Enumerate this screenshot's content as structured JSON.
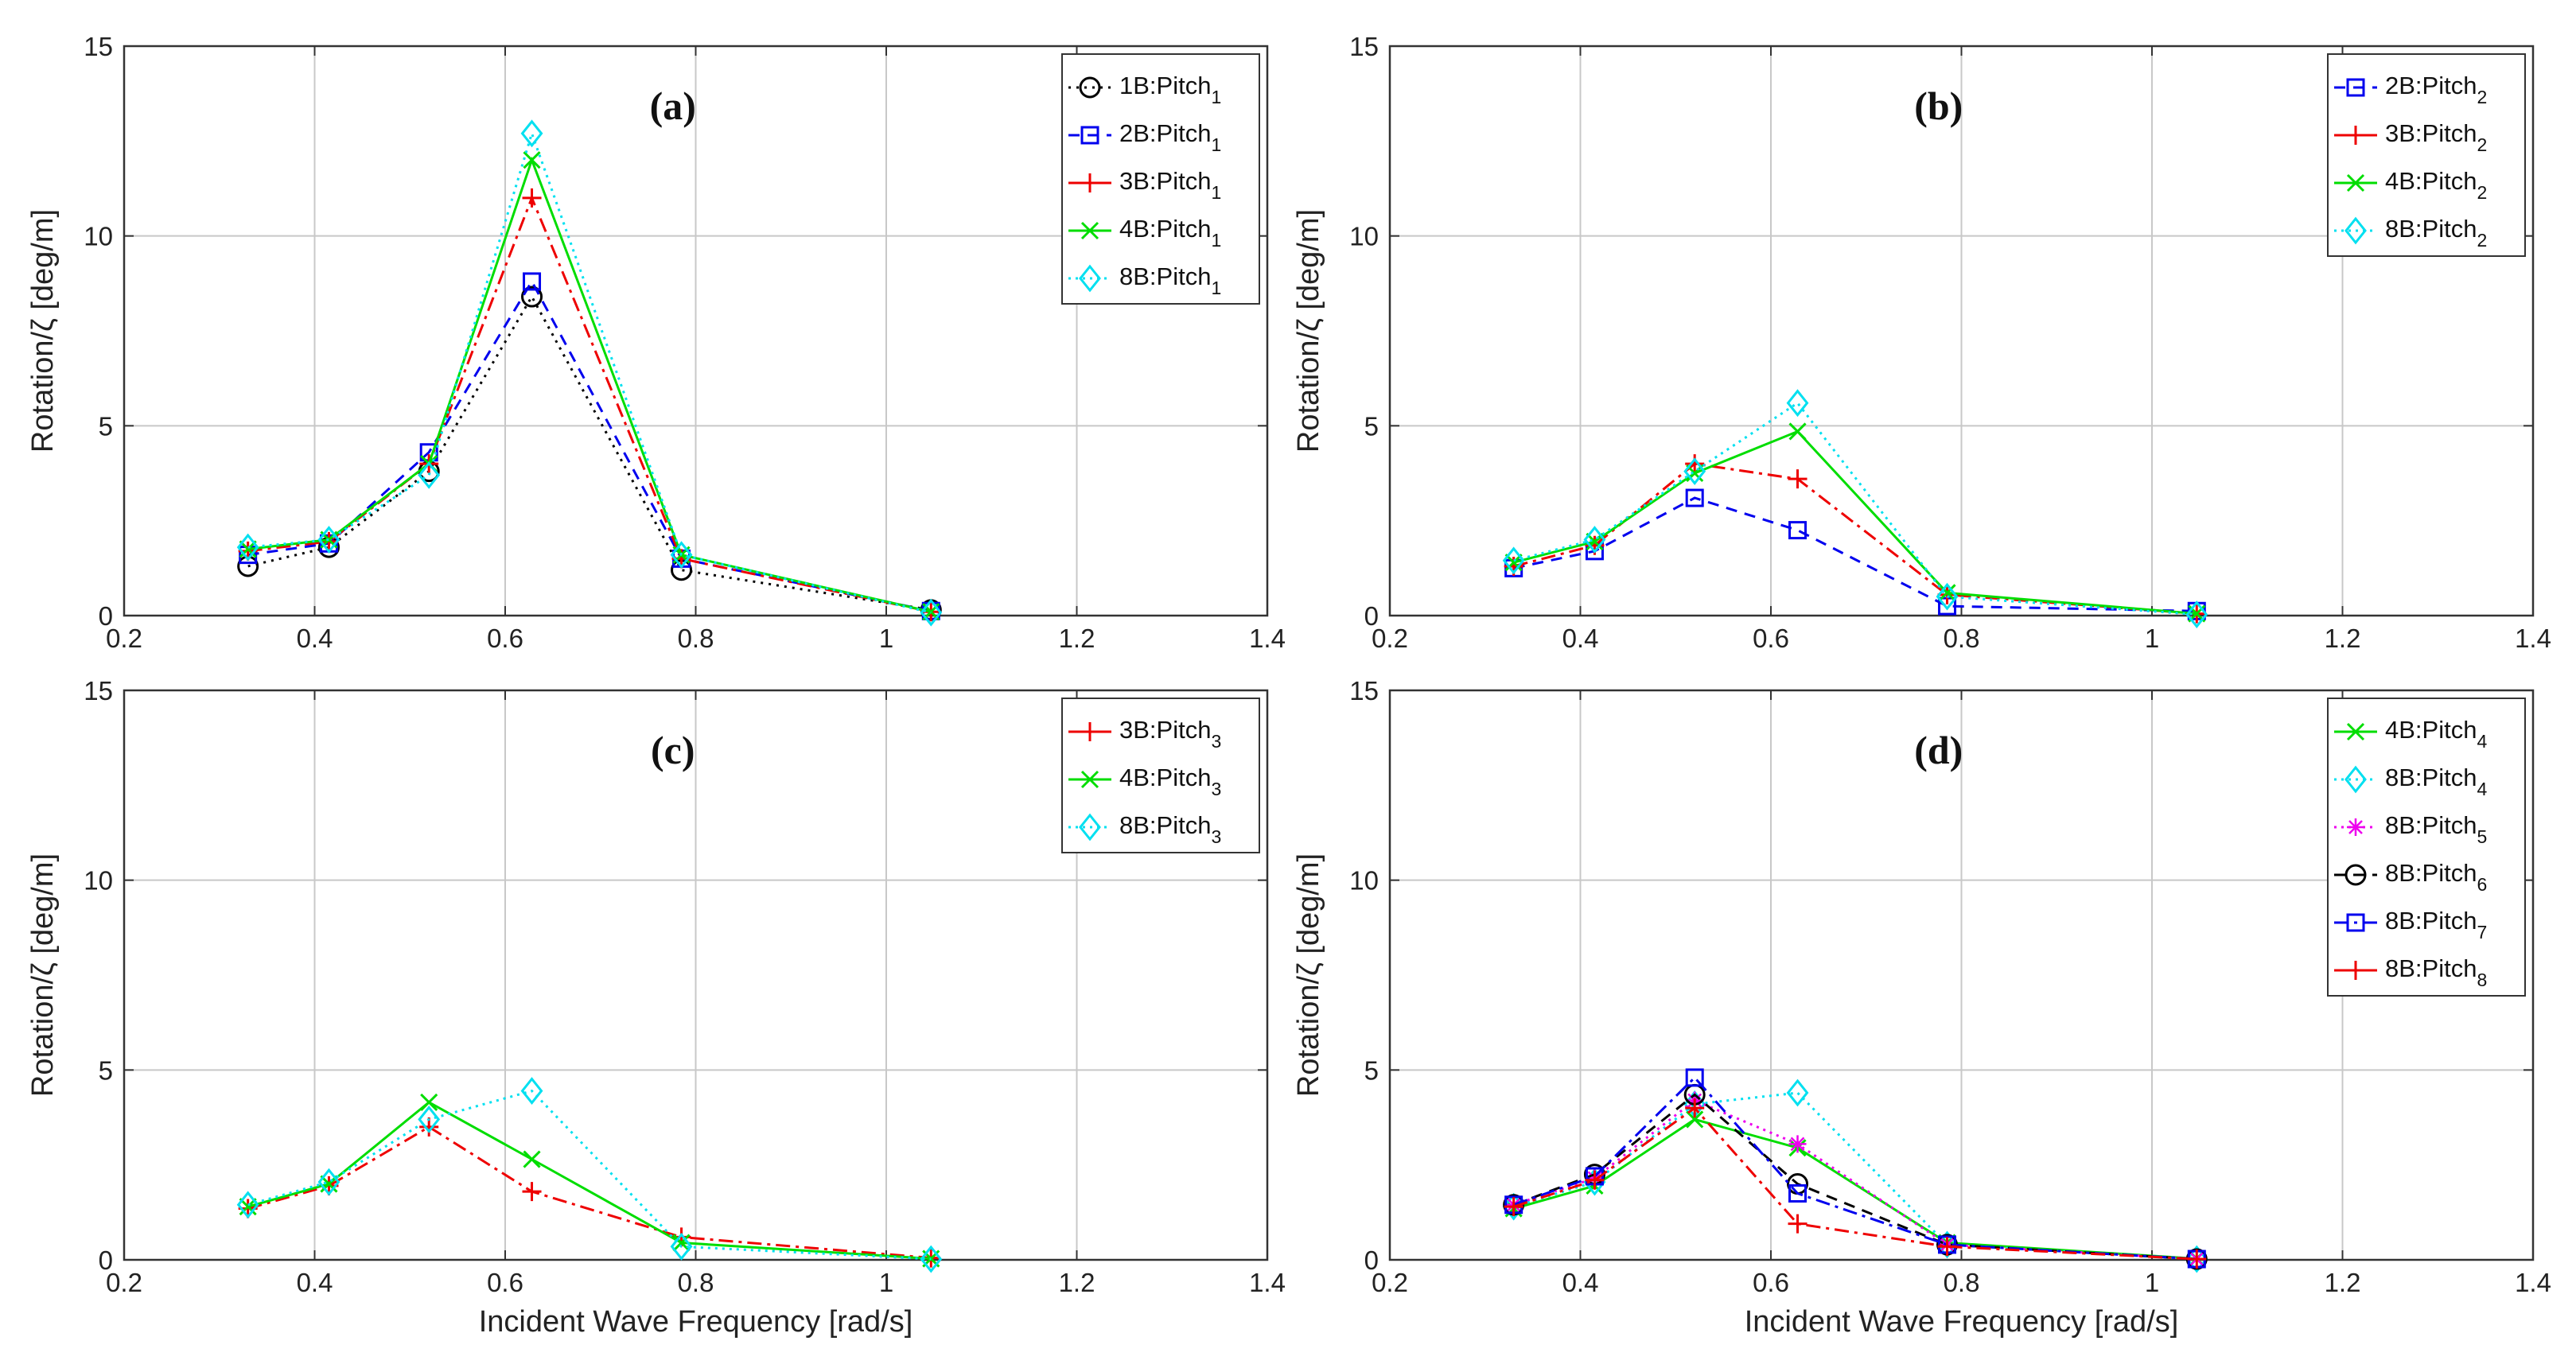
{
  "figure": {
    "xlabel": "Incident Wave Frequency [rad/s]",
    "ylabel": "Rotation/ζ [deg/m]"
  },
  "chart_data": [
    {
      "type": "line",
      "panel": "(a)",
      "xlabel": "",
      "ylabel": "Rotation/ζ [deg/m]",
      "xlim": [
        0.2,
        1.4
      ],
      "ylim": [
        0,
        15
      ],
      "xticks": [
        "0.2",
        "0.4",
        "0.6",
        "0.8",
        "1",
        "1.2",
        "1.4"
      ],
      "yticks": [
        "0",
        "5",
        "10",
        "15"
      ],
      "grid": true,
      "legend_position": "top-right",
      "x": [
        0.33,
        0.415,
        0.52,
        0.628,
        0.785,
        1.047
      ],
      "series": [
        {
          "name": "1B:Pitch",
          "sub": "1",
          "color": "#000000",
          "dash": "3,7",
          "marker": "circle",
          "values": [
            1.3,
            1.8,
            3.8,
            8.4,
            1.2,
            0.15
          ]
        },
        {
          "name": "2B:Pitch",
          "sub": "1",
          "color": "#0000ee",
          "dash": "14,10",
          "marker": "square",
          "values": [
            1.6,
            1.9,
            4.3,
            8.8,
            1.5,
            0.12
          ]
        },
        {
          "name": "3B:Pitch",
          "sub": "1",
          "color": "#ee0000",
          "dash": "18,7,4,7",
          "marker": "plus",
          "values": [
            1.7,
            1.95,
            4.0,
            11.0,
            1.5,
            0.1
          ]
        },
        {
          "name": "4B:Pitch",
          "sub": "1",
          "color": "#00dd00",
          "dash": "",
          "marker": "x",
          "values": [
            1.75,
            2.0,
            4.0,
            12.0,
            1.6,
            0.1
          ]
        },
        {
          "name": "8B:Pitch",
          "sub": "1",
          "color": "#00e0f0",
          "dash": "3,6",
          "marker": "diamond",
          "values": [
            1.8,
            2.0,
            3.7,
            12.7,
            1.6,
            0.08
          ]
        }
      ]
    },
    {
      "type": "line",
      "panel": "(b)",
      "xlabel": "",
      "ylabel": "Rotation/ζ [deg/m]",
      "xlim": [
        0.2,
        1.4
      ],
      "ylim": [
        0,
        15
      ],
      "xticks": [
        "0.2",
        "0.4",
        "0.6",
        "0.8",
        "1",
        "1.2",
        "1.4"
      ],
      "yticks": [
        "0",
        "5",
        "10",
        "15"
      ],
      "grid": true,
      "legend_position": "top-right",
      "x": [
        0.33,
        0.415,
        0.52,
        0.628,
        0.785,
        1.047
      ],
      "series": [
        {
          "name": "2B:Pitch",
          "sub": "2",
          "color": "#0000ee",
          "dash": "14,10",
          "marker": "square",
          "values": [
            1.25,
            1.7,
            3.1,
            2.25,
            0.25,
            0.12
          ]
        },
        {
          "name": "3B:Pitch",
          "sub": "2",
          "color": "#ee0000",
          "dash": "18,7,4,7",
          "marker": "plus",
          "values": [
            1.3,
            1.85,
            4.0,
            3.6,
            0.55,
            0.05
          ]
        },
        {
          "name": "4B:Pitch",
          "sub": "2",
          "color": "#00dd00",
          "dash": "",
          "marker": "x",
          "values": [
            1.4,
            1.95,
            3.75,
            4.85,
            0.6,
            0.05
          ]
        },
        {
          "name": "8B:Pitch",
          "sub": "2",
          "color": "#00e0f0",
          "dash": "3,6",
          "marker": "diamond",
          "values": [
            1.45,
            2.0,
            3.8,
            5.6,
            0.5,
            0.03
          ]
        }
      ]
    },
    {
      "type": "line",
      "panel": "(c)",
      "xlabel": "Incident Wave Frequency [rad/s]",
      "ylabel": "Rotation/ζ [deg/m]",
      "xlim": [
        0.2,
        1.4
      ],
      "ylim": [
        0,
        15
      ],
      "xticks": [
        "0.2",
        "0.4",
        "0.6",
        "0.8",
        "1",
        "1.2",
        "1.4"
      ],
      "yticks": [
        "0",
        "5",
        "10",
        "15"
      ],
      "grid": true,
      "legend_position": "top-right",
      "x": [
        0.33,
        0.415,
        0.52,
        0.628,
        0.785,
        1.047
      ],
      "series": [
        {
          "name": "3B:Pitch",
          "sub": "3",
          "color": "#ee0000",
          "dash": "18,7,4,7",
          "marker": "plus",
          "values": [
            1.35,
            1.95,
            3.5,
            1.8,
            0.6,
            0.05
          ]
        },
        {
          "name": "4B:Pitch",
          "sub": "3",
          "color": "#00dd00",
          "dash": "",
          "marker": "x",
          "values": [
            1.4,
            2.0,
            4.15,
            2.65,
            0.45,
            0.03
          ]
        },
        {
          "name": "8B:Pitch",
          "sub": "3",
          "color": "#00e0f0",
          "dash": "3,6",
          "marker": "diamond",
          "values": [
            1.45,
            2.05,
            3.7,
            4.45,
            0.35,
            0.02
          ]
        }
      ]
    },
    {
      "type": "line",
      "panel": "(d)",
      "xlabel": "Incident Wave Frequency [rad/s]",
      "ylabel": "Rotation/ζ [deg/m]",
      "xlim": [
        0.2,
        1.4
      ],
      "ylim": [
        0,
        15
      ],
      "xticks": [
        "0.2",
        "0.4",
        "0.6",
        "0.8",
        "1",
        "1.2",
        "1.4"
      ],
      "yticks": [
        "0",
        "5",
        "10",
        "15"
      ],
      "grid": true,
      "legend_position": "top-right",
      "x": [
        0.33,
        0.415,
        0.52,
        0.628,
        0.785,
        1.047
      ],
      "series": [
        {
          "name": "4B:Pitch",
          "sub": "4",
          "color": "#00dd00",
          "dash": "",
          "marker": "x",
          "values": [
            1.35,
            1.95,
            3.7,
            2.95,
            0.45,
            0.03
          ]
        },
        {
          "name": "8B:Pitch",
          "sub": "4",
          "color": "#00e0f0",
          "dash": "3,6",
          "marker": "diamond",
          "values": [
            1.4,
            2.05,
            4.1,
            4.4,
            0.4,
            0.02
          ]
        },
        {
          "name": "8B:Pitch",
          "sub": "5",
          "color": "#ee00ee",
          "dash": "3,6",
          "marker": "asterisk",
          "values": [
            1.45,
            2.15,
            4.2,
            3.05,
            0.4,
            0.02
          ]
        },
        {
          "name": "8B:Pitch",
          "sub": "6",
          "color": "#000000",
          "dash": "14,10",
          "marker": "circle",
          "values": [
            1.45,
            2.25,
            4.35,
            2.0,
            0.4,
            0.02
          ]
        },
        {
          "name": "8B:Pitch",
          "sub": "7",
          "color": "#0000ee",
          "dash": "18,7,4,7",
          "marker": "square",
          "values": [
            1.45,
            2.2,
            4.8,
            1.75,
            0.4,
            0.02
          ]
        },
        {
          "name": "8B:Pitch",
          "sub": "8",
          "color": "#ee0000",
          "dash": "18,7,4,7",
          "marker": "plus",
          "values": [
            1.4,
            2.1,
            4.0,
            0.95,
            0.35,
            0.02
          ]
        }
      ]
    }
  ]
}
